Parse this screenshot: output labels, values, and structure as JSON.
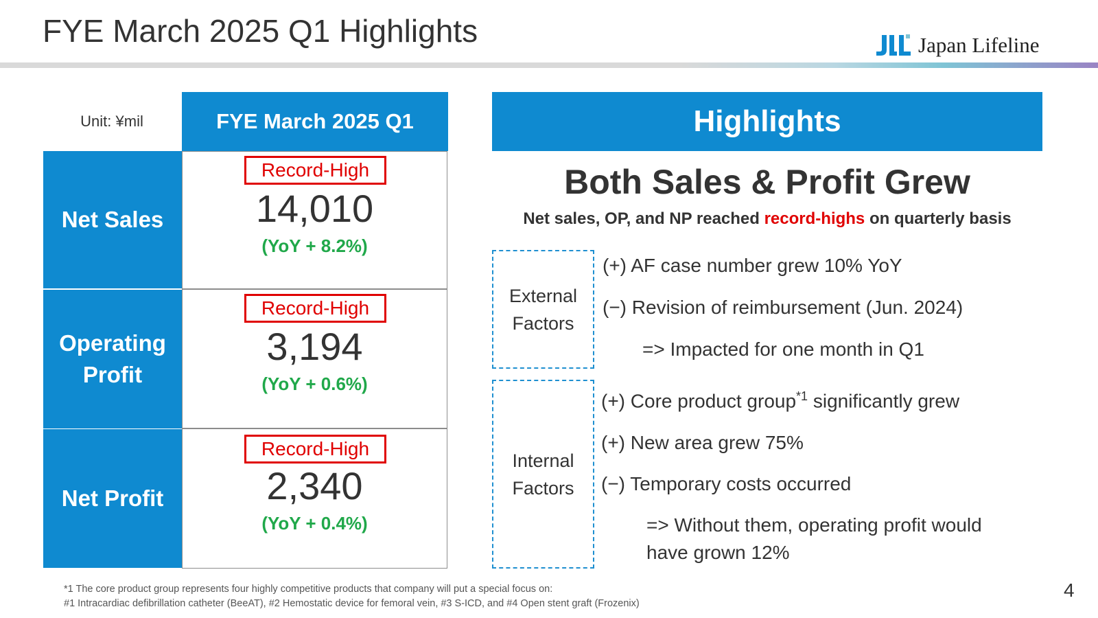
{
  "header": {
    "title": "FYE March 2025 Q1 Highlights",
    "logo_mark": "JLL",
    "logo_text": "Japan Lifeline",
    "brand_color": "#0f8ad0"
  },
  "table": {
    "unit_label": "Unit: ¥mil",
    "column_header": "FYE March 2025 Q1",
    "rows": [
      {
        "label_line1": "Net Sales",
        "label_line2": "",
        "badge": "Record-High",
        "value": "14,010",
        "yoy": "(YoY + 8.2%)"
      },
      {
        "label_line1": "Operating",
        "label_line2": "Profit",
        "badge": "Record-High",
        "value": "3,194",
        "yoy": "(YoY + 0.6%)"
      },
      {
        "label_line1": "Net Profit",
        "label_line2": "",
        "badge": "Record-High",
        "value": "2,340",
        "yoy": "(YoY + 0.4%)"
      }
    ]
  },
  "highlights": {
    "header": "Highlights",
    "main_heading": "Both Sales & Profit Grew",
    "sub_heading_pre": "Net sales, OP, and NP reached ",
    "sub_heading_highlight": "record-highs",
    "sub_heading_post": " on quarterly basis",
    "external": {
      "label_line1": "External",
      "label_line2": "Factors",
      "items": [
        "(+) AF case number grew 10% YoY",
        "(−) Revision of reimbursement (Jun. 2024)",
        "=> Impacted for one month in Q1"
      ]
    },
    "internal": {
      "label_line1": "Internal",
      "label_line2": "Factors",
      "item1_pre": "(+) Core product group",
      "item1_sup": "*1",
      "item1_post": " significantly grew",
      "item2": "(+) New area grew 75%",
      "item3": "(−) Temporary costs occurred",
      "item4_line1": "=> Without them, operating profit would",
      "item4_line2": "have grown 12%"
    }
  },
  "footnote": {
    "line1": "*1 The core product group represents four highly competitive products that company will put a special focus on:",
    "line2": "#1 Intracardiac defibrillation catheter (BeeAT), #2 Hemostatic device for femoral vein, #3 S-ICD, and #4 Open stent graft (Frozenix)"
  },
  "page_number": "4"
}
